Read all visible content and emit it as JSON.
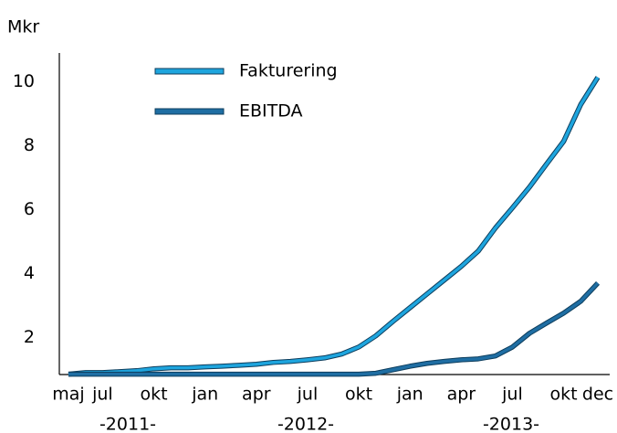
{
  "chart_data": {
    "type": "line",
    "y_label": "Mkr",
    "categories": [
      "maj",
      null,
      "jul",
      null,
      null,
      "okt",
      null,
      null,
      "jan",
      null,
      null,
      "apr",
      null,
      null,
      "jul",
      null,
      null,
      "okt",
      null,
      null,
      "jan",
      null,
      null,
      "apr",
      null,
      null,
      "jul",
      null,
      null,
      "okt",
      null,
      "dec"
    ],
    "year_labels": [
      "-2011-",
      "-2012-",
      "-2013-"
    ],
    "series": [
      {
        "name": "Fakturering",
        "color": "#1ea5de",
        "values": [
          0.86,
          0.91,
          0.91,
          0.94,
          0.97,
          1.03,
          1.06,
          1.06,
          1.09,
          1.11,
          1.14,
          1.17,
          1.23,
          1.26,
          1.31,
          1.37,
          1.49,
          1.71,
          2.06,
          2.51,
          2.94,
          3.37,
          3.8,
          4.23,
          4.71,
          5.43,
          6.06,
          6.71,
          7.43,
          8.14,
          9.29,
          10.14
        ]
      },
      {
        "name": "EBITDA",
        "color": "#1f6ea3",
        "values": [
          0.86,
          0.86,
          0.86,
          0.86,
          0.86,
          0.86,
          0.86,
          0.86,
          0.86,
          0.86,
          0.86,
          0.86,
          0.86,
          0.86,
          0.86,
          0.86,
          0.86,
          0.86,
          0.89,
          1.0,
          1.11,
          1.2,
          1.26,
          1.31,
          1.34,
          1.43,
          1.71,
          2.14,
          2.46,
          2.77,
          3.14,
          3.71
        ]
      }
    ],
    "ylim": [
      0.85,
      10.9
    ],
    "yticks": [
      2,
      4,
      6,
      8,
      10
    ],
    "grid": false,
    "legend": "top-left"
  }
}
